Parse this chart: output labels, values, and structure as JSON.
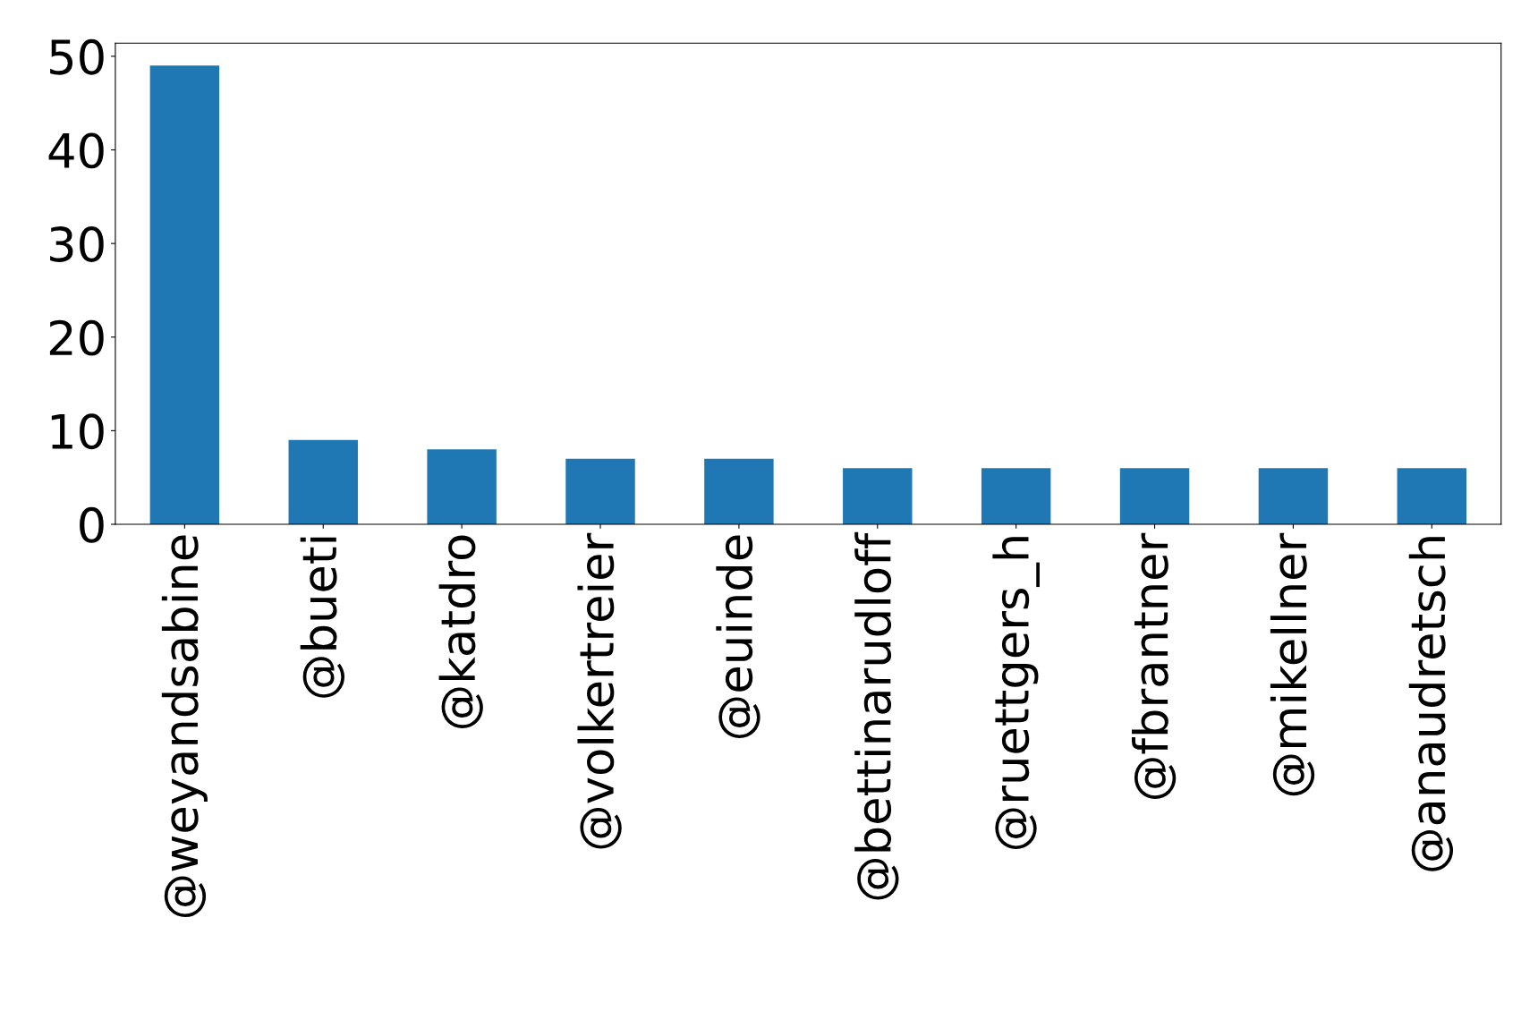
{
  "chart_data": {
    "type": "bar",
    "categories": [
      "@weyandsabine",
      "@bueti",
      "@katdro",
      "@volkertreier",
      "@euinde",
      "@bettinarudloff",
      "@ruettgers_h",
      "@fbrantner",
      "@mikellner",
      "@anaudretsch"
    ],
    "values": [
      49,
      9,
      8,
      7,
      7,
      6,
      6,
      6,
      6,
      6
    ],
    "color": "#1f77b4",
    "ylim": [
      0,
      51.4
    ],
    "yticks": [
      0,
      10,
      20,
      30,
      40,
      50
    ],
    "grid": false,
    "legend": false
  }
}
